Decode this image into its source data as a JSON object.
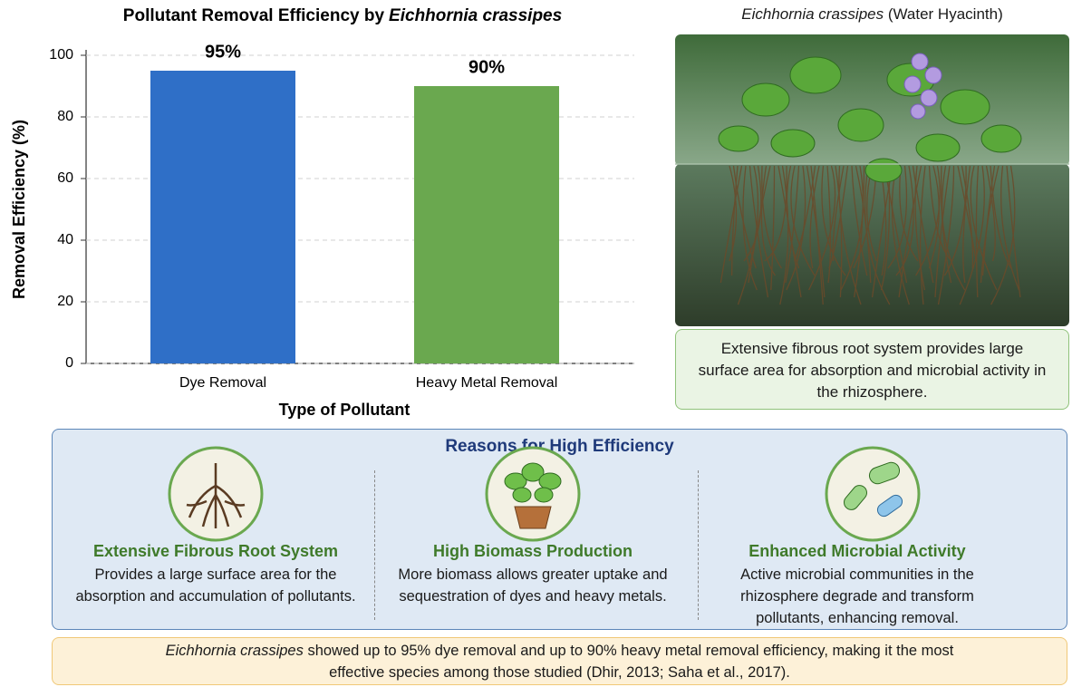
{
  "chart_data": {
    "type": "bar",
    "title": [
      "Pollutant Removal Efficiency by",
      "Eichhornia crassipes"
    ],
    "x_label": "Type of Pollutant",
    "y_label": "Removal Efficiency (%)",
    "categories": [
      "Dye Removal",
      "Heavy Metal Removal"
    ],
    "values": [
      95,
      90
    ],
    "value_labels": [
      "95%",
      "90%"
    ],
    "colors": [
      "#2f6fc7",
      "#6aa84f"
    ],
    "ylim": [
      0,
      100
    ],
    "yticks": [
      0,
      20,
      40,
      60,
      80,
      100
    ],
    "grid": true
  },
  "photo": {
    "title": [
      "Eichhornia crassipes",
      "(Water Hyacinth)"
    ],
    "caption": "Extensive fibrous root system provides large surface area for absorption and microbial activity in the rhizosphere."
  },
  "reasons": {
    "title": "Reasons for High Efficiency",
    "items": [
      {
        "title": "Extensive Fibrous Root System",
        "text": "Provides a large surface area for the absorption and accumulation of pollutants."
      },
      {
        "title": "High Biomass Production",
        "text": "More biomass allows greater uptake and sequestration of dyes and heavy metals."
      },
      {
        "title": "Enhanced Microbial Activity",
        "text": "Active microbial communities in the rhizosphere degrade and transform pollutants, enhancing removal."
      }
    ]
  },
  "footer": [
    "Eichhornia crassipes",
    "showed up to 95% dye removal and up to 90% heavy metal removal efficiency, making it the most effective species among those studied (Dhir, 2013; Saha et al., 2017)."
  ]
}
